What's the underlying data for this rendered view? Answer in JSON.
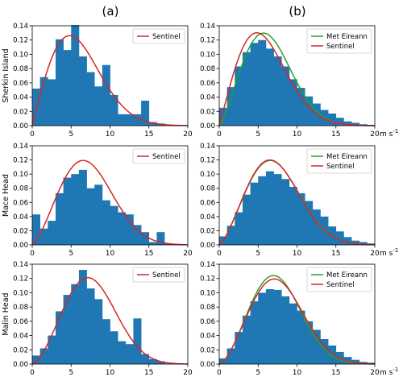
{
  "column_labels": [
    "(a)",
    "(b)"
  ],
  "x_unit_label": "m s",
  "x_unit_exponent": "-1",
  "colors": {
    "bars": "#1f77b4",
    "sentinel": "#d62728",
    "met_eireann": "#2ca02c"
  },
  "chart_data": [
    {
      "type": "bar",
      "ylabel": "Sherkin Island",
      "legend": [
        "Sentinel"
      ],
      "legend_loc": "top-right",
      "xlim": [
        0,
        20
      ],
      "ylim": [
        0,
        0.14
      ],
      "xticks": [
        0,
        5,
        10,
        15,
        20
      ],
      "yticks": [
        0,
        0.02,
        0.04,
        0.06,
        0.08,
        0.1,
        0.12,
        0.14
      ],
      "ytick_labels": [
        "0.00",
        "0.02",
        "0.04",
        "0.06",
        "0.08",
        "0.10",
        "0.12",
        "0.14"
      ],
      "bin_edges": [
        0,
        1,
        2,
        3,
        4,
        5,
        6,
        7,
        8,
        9,
        10,
        11,
        12,
        13,
        14,
        15,
        16,
        17,
        18,
        19,
        20
      ],
      "values": [
        0.052,
        0.068,
        0.065,
        0.121,
        0.106,
        0.141,
        0.097,
        0.075,
        0.055,
        0.085,
        0.043,
        0.016,
        0.016,
        0.016,
        0.035,
        0.005,
        0.003,
        0.0,
        0.0,
        0.0
      ],
      "curves": [
        {
          "name": "Sentinel",
          "k": 2.0,
          "c": 6.8
        }
      ]
    },
    {
      "type": "bar",
      "ylabel": "",
      "legend": [
        "Met Eireann",
        "Sentinel"
      ],
      "legend_loc": "top-right",
      "xlim": [
        0,
        20
      ],
      "ylim": [
        0,
        0.14
      ],
      "xticks": [
        0,
        5,
        10,
        15,
        20
      ],
      "yticks": [
        0,
        0.02,
        0.04,
        0.06,
        0.08,
        0.1,
        0.12,
        0.14
      ],
      "ytick_labels": [
        "0.00",
        "0.02",
        "0.04",
        "0.06",
        "0.08",
        "0.10",
        "0.12",
        "0.14"
      ],
      "bin_edges": [
        0,
        1,
        2,
        3,
        4,
        5,
        6,
        7,
        8,
        9,
        10,
        11,
        12,
        13,
        14,
        15,
        16,
        17,
        18,
        19,
        20
      ],
      "values": [
        0.025,
        0.054,
        0.083,
        0.103,
        0.116,
        0.12,
        0.108,
        0.097,
        0.083,
        0.065,
        0.053,
        0.041,
        0.031,
        0.022,
        0.017,
        0.011,
        0.006,
        0.004,
        0.002,
        0.001
      ],
      "curves": [
        {
          "name": "Met Eireann",
          "k": 2.3,
          "c": 7.3
        },
        {
          "name": "Sentinel",
          "k": 2.05,
          "c": 6.7
        }
      ]
    },
    {
      "type": "bar",
      "ylabel": "Mace Head",
      "legend": [
        "Sentinel"
      ],
      "legend_loc": "top-right",
      "xlim": [
        0,
        20
      ],
      "ylim": [
        0,
        0.14
      ],
      "xticks": [
        0,
        5,
        10,
        15,
        20
      ],
      "yticks": [
        0,
        0.02,
        0.04,
        0.06,
        0.08,
        0.1,
        0.12,
        0.14
      ],
      "ytick_labels": [
        "0.00",
        "0.02",
        "0.04",
        "0.06",
        "0.08",
        "0.10",
        "0.12",
        "0.14"
      ],
      "bin_edges": [
        0,
        1,
        2,
        3,
        4,
        5,
        6,
        7,
        8,
        9,
        10,
        11,
        12,
        13,
        14,
        15,
        16,
        17,
        18,
        19,
        20
      ],
      "values": [
        0.043,
        0.023,
        0.034,
        0.073,
        0.095,
        0.1,
        0.106,
        0.08,
        0.085,
        0.063,
        0.055,
        0.046,
        0.043,
        0.028,
        0.018,
        0.004,
        0.018,
        0.002,
        0.0,
        0.0
      ],
      "curves": [
        {
          "name": "Sentinel",
          "k": 2.4,
          "c": 8.2
        }
      ]
    },
    {
      "type": "bar",
      "ylabel": "",
      "legend": [
        "Met Eireann",
        "Sentinel"
      ],
      "legend_loc": "top-right",
      "xlim": [
        0,
        20
      ],
      "ylim": [
        0,
        0.14
      ],
      "xticks": [
        0,
        5,
        10,
        15,
        20
      ],
      "yticks": [
        0,
        0.02,
        0.04,
        0.06,
        0.08,
        0.1,
        0.12,
        0.14
      ],
      "ytick_labels": [
        "0.00",
        "0.02",
        "0.04",
        "0.06",
        "0.08",
        "0.10",
        "0.12",
        "0.14"
      ],
      "bin_edges": [
        0,
        1,
        2,
        3,
        4,
        5,
        6,
        7,
        8,
        9,
        10,
        11,
        12,
        13,
        14,
        15,
        16,
        17,
        18,
        19,
        20
      ],
      "values": [
        0.012,
        0.027,
        0.046,
        0.071,
        0.088,
        0.097,
        0.104,
        0.1,
        0.093,
        0.082,
        0.073,
        0.062,
        0.05,
        0.04,
        0.026,
        0.019,
        0.011,
        0.006,
        0.004,
        0.002
      ],
      "curves": [
        {
          "name": "Met Eireann",
          "k": 2.4,
          "c": 8.2
        },
        {
          "name": "Sentinel",
          "k": 2.4,
          "c": 8.15
        }
      ]
    },
    {
      "type": "bar",
      "ylabel": "Malin Head",
      "legend": [
        "Sentinel"
      ],
      "legend_loc": "top-right",
      "xlim": [
        0,
        20
      ],
      "ylim": [
        0,
        0.14
      ],
      "xticks": [
        0,
        5,
        10,
        15,
        20
      ],
      "yticks": [
        0,
        0.02,
        0.04,
        0.06,
        0.08,
        0.1,
        0.12,
        0.14
      ],
      "ytick_labels": [
        "0.00",
        "0.02",
        "0.04",
        "0.06",
        "0.08",
        "0.10",
        "0.12",
        "0.14"
      ],
      "bin_edges": [
        0,
        1,
        2,
        3,
        4,
        5,
        6,
        7,
        8,
        9,
        10,
        11,
        12,
        13,
        14,
        15,
        16,
        17,
        18,
        19,
        20
      ],
      "values": [
        0.012,
        0.022,
        0.04,
        0.074,
        0.097,
        0.112,
        0.132,
        0.106,
        0.091,
        0.063,
        0.046,
        0.032,
        0.028,
        0.064,
        0.014,
        0.007,
        0.004,
        0.001,
        0.0,
        0.0
      ],
      "curves": [
        {
          "name": "Sentinel",
          "k": 2.6,
          "c": 8.6
        }
      ]
    },
    {
      "type": "bar",
      "ylabel": "",
      "legend": [
        "Met Eireann",
        "Sentinel"
      ],
      "legend_loc": "top-right",
      "xlim": [
        0,
        20
      ],
      "ylim": [
        0,
        0.14
      ],
      "xticks": [
        0,
        5,
        10,
        15,
        20
      ],
      "yticks": [
        0,
        0.02,
        0.04,
        0.06,
        0.08,
        0.1,
        0.12,
        0.14
      ],
      "ytick_labels": [
        "0.00",
        "0.02",
        "0.04",
        "0.06",
        "0.08",
        "0.10",
        "0.12",
        "0.14"
      ],
      "bin_edges": [
        0,
        1,
        2,
        3,
        4,
        5,
        6,
        7,
        8,
        9,
        10,
        11,
        12,
        13,
        14,
        15,
        16,
        17,
        18,
        19,
        20
      ],
      "values": [
        0.008,
        0.022,
        0.045,
        0.068,
        0.088,
        0.1,
        0.105,
        0.104,
        0.095,
        0.085,
        0.075,
        0.06,
        0.048,
        0.035,
        0.026,
        0.017,
        0.01,
        0.006,
        0.003,
        0.002
      ],
      "curves": [
        {
          "name": "Met Eireann",
          "k": 2.6,
          "c": 8.4
        },
        {
          "name": "Sentinel",
          "k": 2.55,
          "c": 8.6
        }
      ]
    }
  ]
}
